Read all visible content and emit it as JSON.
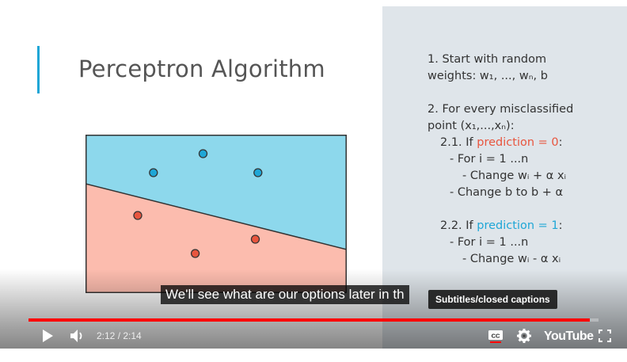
{
  "slide": {
    "title": "Perceptron Algorithm",
    "steps": [
      {
        "text": "1. Start with random",
        "indent": 0
      },
      {
        "text": "weights: w₁, ..., wₙ, b",
        "indent": 0
      },
      {
        "text": "",
        "indent": 0
      },
      {
        "text": "2. For every misclassified",
        "indent": 0
      },
      {
        "text": "point (x₁,...,xₙ):",
        "indent": 0
      },
      {
        "pre": "2.1. If ",
        "hl": "prediction = 0",
        "post": ":",
        "hlColor": "red",
        "indent": 16
      },
      {
        "text": "- For i = 1 ...n",
        "indent": 28
      },
      {
        "text": "- Change wᵢ + α xᵢ",
        "indent": 44
      },
      {
        "text": "- Change b to b + α",
        "indent": 28
      },
      {
        "text": "",
        "indent": 0
      },
      {
        "pre": "2.2. If ",
        "hl": "prediction = 1",
        "post": ":",
        "hlColor": "blue",
        "indent": 16
      },
      {
        "text": "- For i = 1 ...n",
        "indent": 28
      },
      {
        "text": "- Change wᵢ - α xᵢ",
        "indent": 44
      }
    ],
    "plot": {
      "colors": {
        "blue_region": "#8dd8ec",
        "red_region": "#fcbcae",
        "blue_point": "#1fa6d6",
        "red_point": "#e8553e",
        "border": "#333333"
      },
      "blue_points": [
        [
          0.45,
          0.88
        ],
        [
          0.26,
          0.76
        ],
        [
          0.66,
          0.76
        ]
      ],
      "red_points": [
        [
          0.2,
          0.49
        ],
        [
          0.65,
          0.34
        ],
        [
          0.42,
          0.25
        ]
      ],
      "boundary": [
        [
          0.0,
          0.73
        ],
        [
          1.0,
          0.3
        ]
      ]
    }
  },
  "caption": "We'll see what are our options later in th",
  "tooltip": "Subtitles/closed captions",
  "player": {
    "current_time": "2:12",
    "duration": "2:14",
    "time_display": "2:12 / 2:14",
    "progress": 0.985,
    "logo": "YouTube",
    "colors": {
      "progress": "#ff0000",
      "cc_underline": "#ff0000"
    }
  }
}
